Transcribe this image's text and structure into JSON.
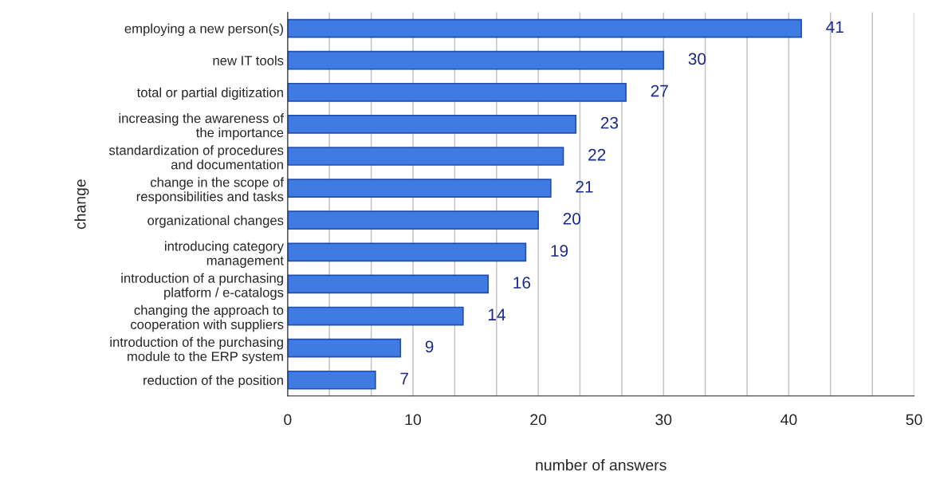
{
  "chart_data": {
    "type": "bar",
    "orientation": "horizontal",
    "xlabel": "number of answers",
    "ylabel": "change",
    "categories": [
      "employing a new person(s)",
      "new IT tools",
      "total or partial digitization",
      "increasing the awareness of\nthe importance",
      "standardization of procedures\nand documentation",
      "change in the scope of\nresponsibilities and tasks",
      "organizational changes",
      "introducing category\nmanagement",
      "introduction of a purchasing\nplatform / e-catalogs",
      "changing the approach to\ncooperation with suppliers",
      "introduction of the purchasing\nmodule to the ERP system",
      "reduction of the position"
    ],
    "values": [
      41,
      30,
      27,
      23,
      22,
      21,
      20,
      19,
      16,
      14,
      9,
      7
    ],
    "color": "#3f7be3",
    "xlim": [
      0,
      50
    ],
    "xticks": [
      0,
      {
        "value": 3.33,
        "label": null
      },
      {
        "value": 6.67,
        "label": null
      },
      10,
      {
        "value": 13.33,
        "label": null
      },
      {
        "value": 16.67,
        "label": null
      },
      20,
      {
        "value": 23.33,
        "label": null
      },
      {
        "value": 26.67,
        "label": null
      },
      30,
      {
        "value": 33.33,
        "label": null
      },
      {
        "value": 36.67,
        "label": null
      },
      40,
      {
        "value": 43.33,
        "label": null
      },
      {
        "value": 46.67,
        "label": null
      },
      50
    ],
    "grid": "x",
    "data_labels": true
  }
}
